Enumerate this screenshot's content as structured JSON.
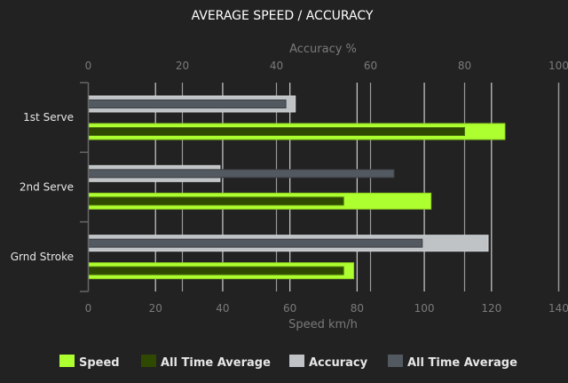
{
  "chart_data": {
    "type": "bar",
    "orientation": "horizontal",
    "title": "AVERAGE SPEED / ACCURACY",
    "categories": [
      "1st Serve",
      "2nd Serve",
      "Grnd Stroke"
    ],
    "bottom_axis": {
      "label": "Speed km/h",
      "range": [
        0,
        140
      ],
      "ticks": [
        0,
        20,
        40,
        60,
        80,
        100,
        120,
        140
      ]
    },
    "top_axis": {
      "label": "Accuracy %",
      "range": [
        0,
        100
      ],
      "ticks": [
        0,
        20,
        40,
        60,
        80,
        100
      ]
    },
    "grid": true,
    "legend_position": "bottom",
    "series": [
      {
        "name": "Speed",
        "axis": "bottom",
        "color": "#adff2f",
        "values": [
          124,
          102,
          79
        ]
      },
      {
        "name": "All Time Average",
        "axis": "bottom",
        "color": "#2f4a00",
        "values": [
          112,
          76,
          76
        ]
      },
      {
        "name": "Accuracy",
        "axis": "top",
        "color": "#bfc3c6",
        "values": [
          44,
          28,
          85
        ]
      },
      {
        "name": "All Time Average",
        "axis": "top",
        "color": "#535960",
        "values": [
          42,
          65,
          71
        ]
      }
    ]
  }
}
